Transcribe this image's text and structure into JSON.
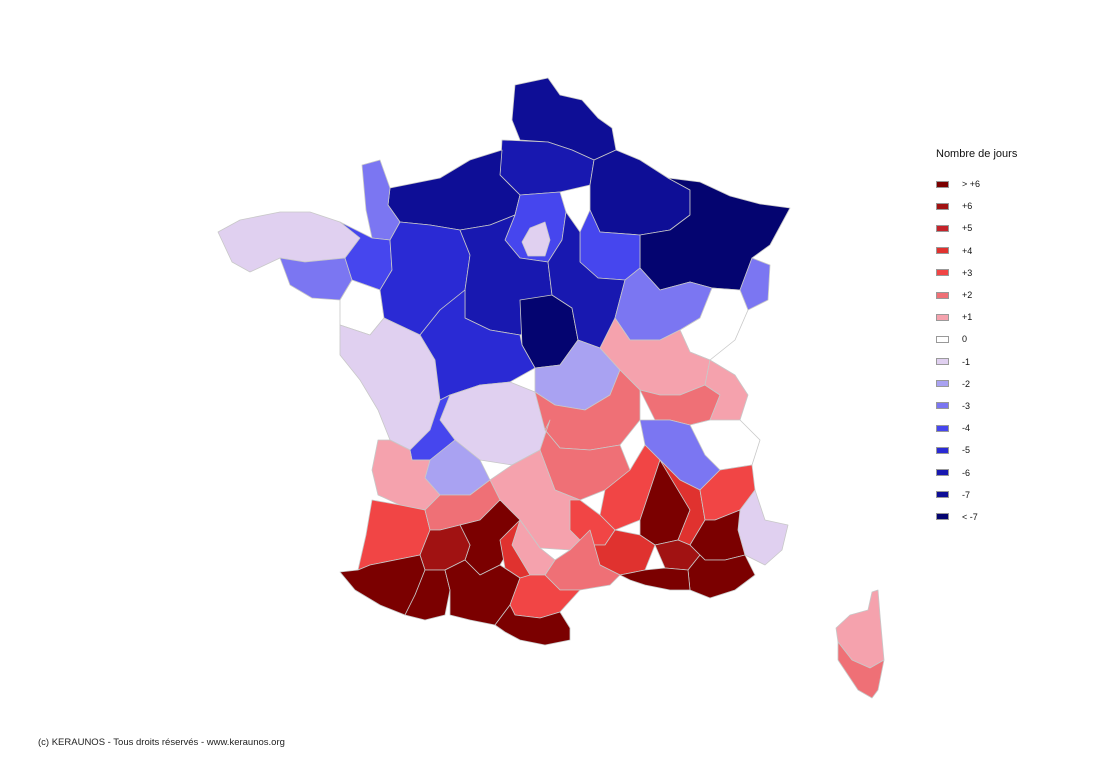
{
  "legend": {
    "title": "Nombre de jours",
    "items": [
      {
        "label": "> +6",
        "color": "#7b0000"
      },
      {
        "label": "+6",
        "color": "#a11212"
      },
      {
        "label": "+5",
        "color": "#c4232a"
      },
      {
        "label": "+4",
        "color": "#e0322f"
      },
      {
        "label": "+3",
        "color": "#f14545"
      },
      {
        "label": "+2",
        "color": "#ef7076"
      },
      {
        "label": "+1",
        "color": "#f5a2ad"
      },
      {
        "label": "0",
        "color": "#ffffff"
      },
      {
        "label": "-1",
        "color": "#e0d0f0"
      },
      {
        "label": "-2",
        "color": "#a9a2f2"
      },
      {
        "label": "-3",
        "color": "#7b76f2"
      },
      {
        "label": "-4",
        "color": "#4646ee"
      },
      {
        "label": "-5",
        "color": "#2a2ad4"
      },
      {
        "label": "-6",
        "color": "#1818b0"
      },
      {
        "label": "-7",
        "color": "#0e0e96"
      },
      {
        "label": "< -7",
        "color": "#040470"
      }
    ]
  },
  "footer": {
    "copyright": "(c) KERAUNOS - Tous droits réservés - www.keraunos.org"
  },
  "map": {
    "regions": [
      {
        "name": "nord-pas-de-calais",
        "level": "-7"
      },
      {
        "name": "picardie",
        "level": "-6"
      },
      {
        "name": "normandie",
        "level": "-7"
      },
      {
        "name": "manche",
        "level": "-3"
      },
      {
        "name": "ile-de-france",
        "level": "-4"
      },
      {
        "name": "paris",
        "level": "-1"
      },
      {
        "name": "champagne-ardenne",
        "level": "-7"
      },
      {
        "name": "lorraine-alsace",
        "level": "< -7"
      },
      {
        "name": "bretagne-ouest",
        "level": "-1"
      },
      {
        "name": "bretagne-morbihan",
        "level": "-3"
      },
      {
        "name": "ille-et-vilaine",
        "level": "-4"
      },
      {
        "name": "pays-de-la-loire",
        "level": "-5"
      },
      {
        "name": "loire-atlantique",
        "level": "0"
      },
      {
        "name": "centre",
        "level": "-6"
      },
      {
        "name": "loiret",
        "level": "< -7"
      },
      {
        "name": "bourgogne-ouest",
        "level": "-6"
      },
      {
        "name": "aube-marne",
        "level": "-4"
      },
      {
        "name": "franche-comte",
        "level": "-3"
      },
      {
        "name": "bas-rhin-east",
        "level": "-3"
      },
      {
        "name": "doubs",
        "level": "0"
      },
      {
        "name": "poitou-charentes",
        "level": "-1"
      },
      {
        "name": "indre-creuse",
        "level": "-5"
      },
      {
        "name": "allier",
        "level": "-2"
      },
      {
        "name": "limousin",
        "level": "-1"
      },
      {
        "name": "dordogne",
        "level": "-4"
      },
      {
        "name": "lot-correze",
        "level": "-2"
      },
      {
        "name": "saone-et-loire",
        "level": "+1"
      },
      {
        "name": "loire-rhone",
        "level": "+2"
      },
      {
        "name": "ain",
        "level": "+2"
      },
      {
        "name": "haute-savoie",
        "level": "+1"
      },
      {
        "name": "savoie",
        "level": "0"
      },
      {
        "name": "isere",
        "level": "-3"
      },
      {
        "name": "puy-de-dome",
        "level": "+2"
      },
      {
        "name": "cantal",
        "level": "+1"
      },
      {
        "name": "haute-loire",
        "level": "+3"
      },
      {
        "name": "ardeche",
        "level": "> +6"
      },
      {
        "name": "drome",
        "level": "+4"
      },
      {
        "name": "hautes-alpes",
        "level": "+3"
      },
      {
        "name": "alpes-maritimes",
        "level": "-1"
      },
      {
        "name": "gironde",
        "level": "+1"
      },
      {
        "name": "landes",
        "level": "+3"
      },
      {
        "name": "lot-et-garonne",
        "level": "+2"
      },
      {
        "name": "tarn-et-garonne",
        "level": "> +6"
      },
      {
        "name": "aveyron",
        "level": "+4"
      },
      {
        "name": "lozere",
        "level": "+3"
      },
      {
        "name": "gard",
        "level": "+4"
      },
      {
        "name": "vaucluse",
        "level": "+6"
      },
      {
        "name": "provence",
        "level": "> +6"
      },
      {
        "name": "var",
        "level": "> +6"
      },
      {
        "name": "gers",
        "level": "+6"
      },
      {
        "name": "tarn",
        "level": "+1"
      },
      {
        "name": "herault",
        "level": "+2"
      },
      {
        "name": "bouches-du-rhone",
        "level": "> +6"
      },
      {
        "name": "pyrenees-atlantiques",
        "level": "> +6"
      },
      {
        "name": "hautes-pyrenees",
        "level": "> +6"
      },
      {
        "name": "ariege-haute-garonne",
        "level": "> +6"
      },
      {
        "name": "aude",
        "level": "+3"
      },
      {
        "name": "pyrenees-orientales",
        "level": "> +6"
      },
      {
        "name": "haute-corse",
        "level": "+1"
      },
      {
        "name": "corse-du-sud",
        "level": "+2"
      }
    ]
  }
}
